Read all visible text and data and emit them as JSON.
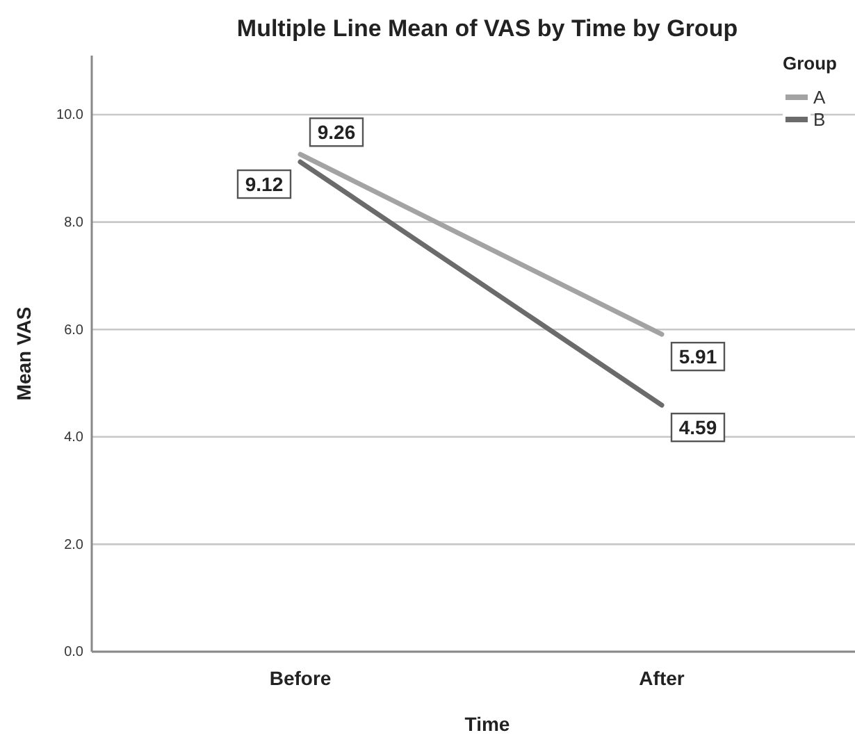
{
  "chart_data": {
    "type": "line",
    "title": "Multiple Line Mean of VAS by Time by Group",
    "xlabel": "Time",
    "ylabel": "Mean VAS",
    "legend_title": "Group",
    "categories": [
      "Before",
      "After"
    ],
    "series": [
      {
        "name": "A",
        "color": "#a3a3a3",
        "values": [
          9.26,
          5.91
        ]
      },
      {
        "name": "B",
        "color": "#6b6b6b",
        "values": [
          9.12,
          4.59
        ]
      }
    ],
    "ylim": [
      0,
      11.1
    ],
    "yticks": [
      {
        "value": 0,
        "label": "0.0"
      },
      {
        "value": 2,
        "label": "2.0"
      },
      {
        "value": 4,
        "label": "4.0"
      },
      {
        "value": 6,
        "label": "6.0"
      },
      {
        "value": 8,
        "label": "8.0"
      },
      {
        "value": 10,
        "label": "10.0"
      }
    ],
    "grid": "y",
    "legend": "top right",
    "data_labels": true,
    "marker": "none",
    "line_style": "solid"
  }
}
